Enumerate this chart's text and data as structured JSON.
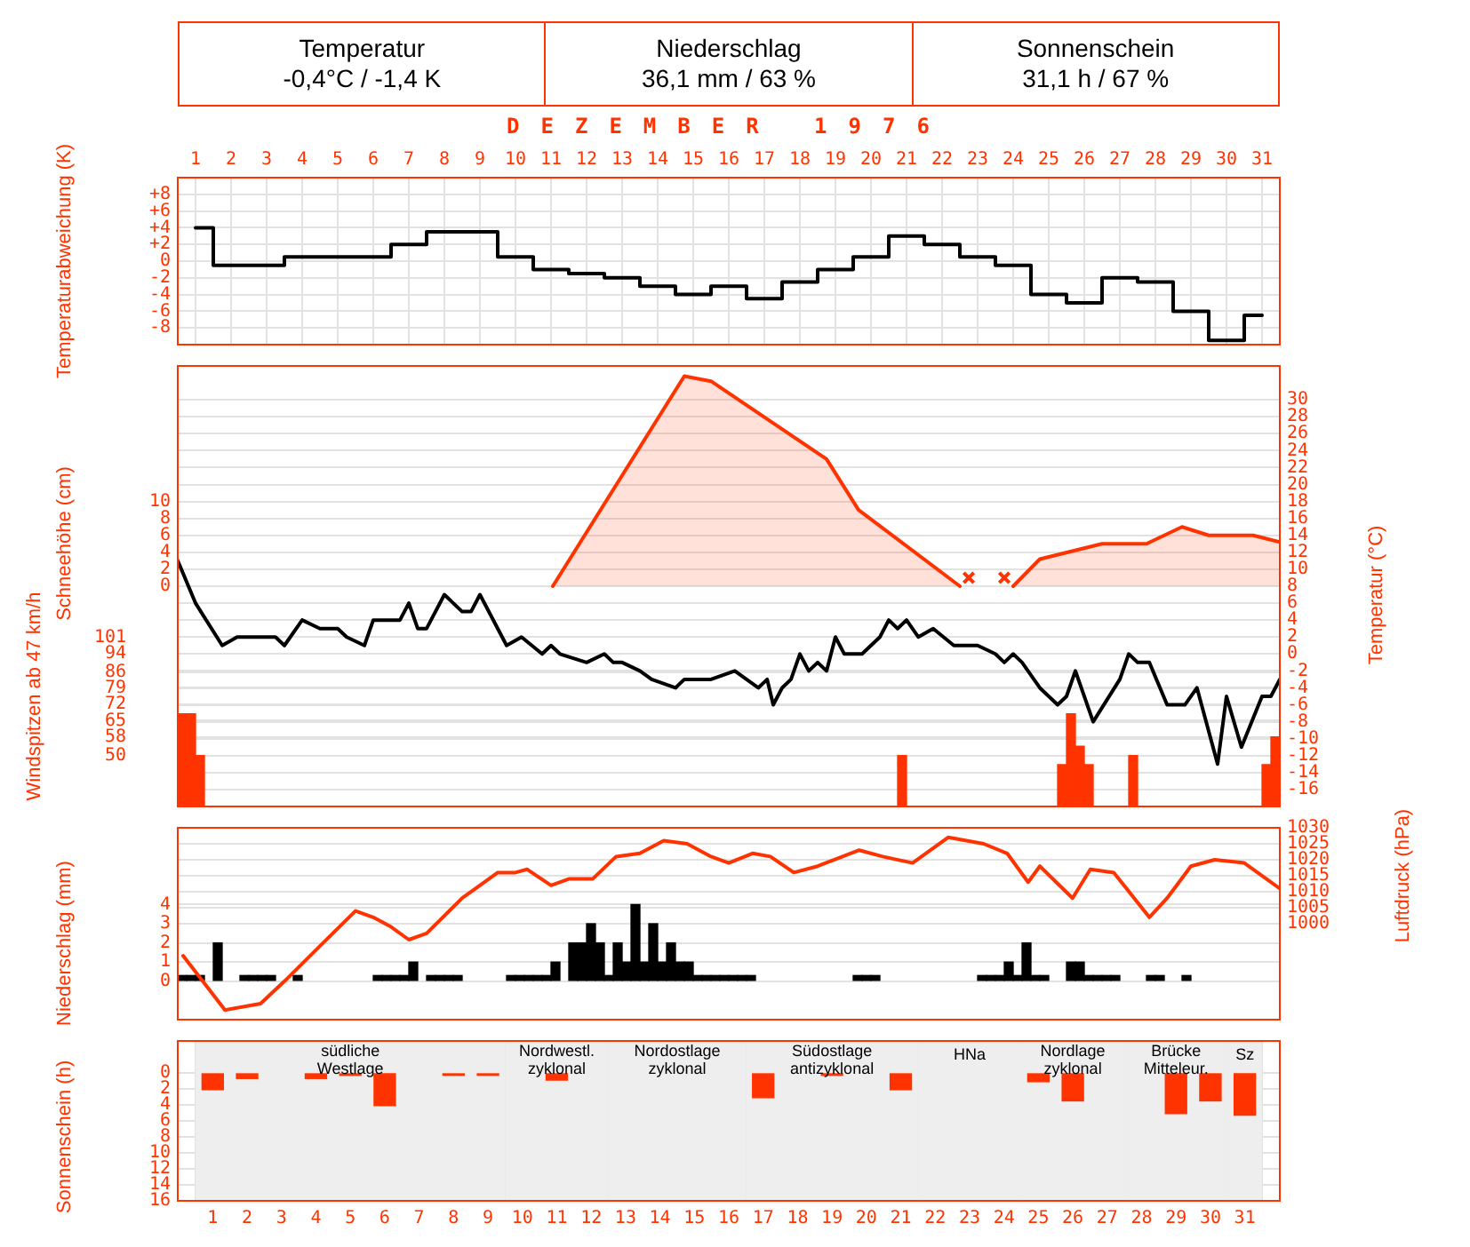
{
  "chart_data": [
    {
      "type": "step",
      "title": "DEZEMBER 1976",
      "annotations": [
        "Temperatur",
        "-0,4°C / -1,4 K",
        "Niederschlag",
        "36,1 mm / 63 %",
        "Sonnenschein",
        "31,1 h / 67 %"
      ],
      "ylabel": "Temperaturabweichung (K)",
      "xlim": [
        0.5,
        31.5
      ],
      "xticks": [
        1,
        2,
        3,
        4,
        5,
        6,
        7,
        8,
        9,
        10,
        11,
        12,
        13,
        14,
        15,
        16,
        17,
        18,
        19,
        20,
        21,
        22,
        23,
        24,
        25,
        26,
        27,
        28,
        29,
        30,
        31
      ],
      "ylim": [
        -10,
        10
      ],
      "yticks": [
        {
          "value": 8,
          "label": "+8"
        },
        {
          "value": 6,
          "label": "+6"
        },
        {
          "value": 4,
          "label": "+4"
        },
        {
          "value": 2,
          "label": "+2"
        },
        0,
        -2,
        -4,
        -6,
        -8
      ],
      "grid": true,
      "legend": false,
      "marker": "none",
      "series": [
        {
          "color": "#000000",
          "x": [
            1,
            2,
            3,
            4,
            5,
            6,
            7,
            8,
            9,
            10,
            11,
            12,
            13,
            14,
            15,
            16,
            17,
            18,
            19,
            20,
            21,
            22,
            23,
            24,
            25,
            26,
            27,
            28,
            29,
            30,
            31
          ],
          "values": [
            4,
            -0.5,
            -0.5,
            0.5,
            0.5,
            0.5,
            2,
            3.5,
            3.5,
            0.5,
            -1,
            -1.5,
            -2,
            -3,
            -4,
            -3,
            -4.5,
            -2.5,
            -1,
            0.5,
            3,
            2,
            0.5,
            -0.5,
            -4,
            -5,
            -2,
            -2.5,
            -6,
            -9.5,
            -6.5
          ]
        }
      ]
    },
    {
      "type": "line",
      "ylabel": "Schneehöhe (cm)",
      "y2label": "Temperatur (°C)",
      "y3label": "Windspitzen ab 47 km/h",
      "xlim": [
        0.5,
        31.5
      ],
      "tick_labels": "y",
      "ylim": [
        -26,
        26
      ],
      "yticks": [
        0,
        2,
        4,
        6,
        8,
        10
      ],
      "y2lim": [
        -18,
        34
      ],
      "y2ticks": [
        30,
        28,
        26,
        24,
        22,
        20,
        18,
        16,
        14,
        12,
        10,
        8,
        6,
        4,
        2,
        0,
        -2,
        -4,
        -6,
        -8,
        -10,
        -12,
        -14,
        -16
      ],
      "y3lim": [
        28,
        218
      ],
      "y3ticks": [
        101,
        94,
        86,
        79,
        72,
        65,
        58,
        50
      ],
      "grid": true,
      "legend": false,
      "marker": "none",
      "series": [
        {
          "type": "area",
          "color": "#ff3300",
          "x": [
            11.05,
            14.75,
            15.5,
            18.75,
            19.65,
            22.5,
            23,
            24,
            24.75,
            26.5,
            27.75,
            28.75,
            29.5,
            30.75,
            31.5
          ],
          "values": [
            0,
            24.8,
            24.2,
            15,
            9,
            0,
            null,
            0,
            3.2,
            5,
            5,
            7,
            6,
            6,
            5.2
          ]
        },
        {
          "type": "scatter",
          "color": "#ff3300",
          "marker": "cross",
          "x": [
            22.75,
            23.75
          ],
          "values": [
            1,
            1
          ]
        },
        {
          "type": "line",
          "axis": "y2",
          "color": "#000000",
          "x": [
            0.5,
            1,
            1.75,
            2.17,
            3.25,
            3.5,
            4,
            4.5,
            5,
            5.25,
            5.75,
            6,
            6.75,
            7,
            7.25,
            7.5,
            8,
            8.5,
            8.75,
            9,
            9.75,
            10.17,
            10.75,
            11,
            11.25,
            12,
            12.5,
            12.75,
            13,
            13.5,
            13.83,
            14.5,
            14.75,
            15.5,
            16.17,
            16.83,
            17.08,
            17.25,
            17.5,
            17.75,
            18,
            18.25,
            18.5,
            18.75,
            19,
            19.25,
            19.75,
            20.25,
            20.5,
            20.75,
            21,
            21.33,
            21.75,
            22.33,
            23,
            23.5,
            23.75,
            24,
            24.25,
            24.75,
            25.25,
            25.5,
            25.75,
            26.25,
            27,
            27.25,
            27.5,
            27.83,
            28.33,
            28.83,
            29.17,
            29.75,
            30,
            30.42,
            31,
            31.25,
            31.5
          ],
          "values": [
            11,
            6,
            1,
            2,
            2,
            1,
            4,
            3,
            3,
            2,
            1,
            4,
            4,
            6,
            3,
            3,
            7,
            5,
            5,
            7,
            1,
            2,
            0,
            1,
            0,
            -1,
            0,
            -1,
            -1,
            -2,
            -3,
            -4,
            -3,
            -3,
            -2,
            -4,
            -3,
            -6,
            -4,
            -3,
            0,
            -2,
            -1,
            -2,
            2,
            0,
            0,
            2,
            4,
            3,
            4,
            2,
            3,
            1,
            1,
            0,
            -1,
            0,
            -1,
            -4,
            -6,
            -5,
            -2,
            -8,
            -3,
            0,
            -1,
            -1,
            -6,
            -6,
            -4,
            -13,
            -5,
            -11,
            -5,
            -5,
            -3
          ]
        },
        {
          "type": "bar",
          "axis": "y3",
          "color": "#ff3300",
          "x": [
            0.625,
            0.875,
            1.125,
            20.875,
            25.375,
            25.625,
            25.875,
            26.125,
            27.375,
            31.125,
            31.375
          ],
          "values": [
            68,
            68,
            50,
            50,
            46,
            68,
            54,
            46,
            50,
            46,
            58
          ]
        }
      ]
    },
    {
      "type": "bar",
      "ylabel": "Niederschlag (mm)",
      "y2label": "Luftdruck (hPa)",
      "xlim": [
        0.5,
        31.5
      ],
      "tick_labels": "y",
      "ylim": [
        -2,
        8
      ],
      "yticks": [
        0,
        1,
        2,
        3,
        4
      ],
      "y2lim": [
        970,
        1030
      ],
      "y2ticks": [
        1030,
        1025,
        1020,
        1015,
        1010,
        1005,
        1000
      ],
      "grid": true,
      "legend": false,
      "marker": "none",
      "series": [
        {
          "type": "bar",
          "color": "#000000",
          "x": [
            0.625,
            0.875,
            1.125,
            1.625,
            2.375,
            2.625,
            2.875,
            3.125,
            3.875,
            6.125,
            6.375,
            6.625,
            6.875,
            7.125,
            7.625,
            7.875,
            8.125,
            8.375,
            9.875,
            10.125,
            10.375,
            10.625,
            10.875,
            11.125,
            11.625,
            11.875,
            12.125,
            12.375,
            12.625,
            12.875,
            13.125,
            13.375,
            13.625,
            13.875,
            14.125,
            14.375,
            14.625,
            14.875,
            15.125,
            15.375,
            15.625,
            15.875,
            16.125,
            16.375,
            16.625,
            19.625,
            19.875,
            20.125,
            23.125,
            23.375,
            23.625,
            23.875,
            24.125,
            24.375,
            24.625,
            24.875,
            25.625,
            25.875,
            26.125,
            26.375,
            26.625,
            26.875,
            27.875,
            28.125,
            28.875
          ],
          "values": [
            0.3,
            0.3,
            0.3,
            2,
            0.3,
            0.3,
            0.3,
            0.3,
            0.3,
            0.3,
            0.3,
            0.3,
            0.3,
            1,
            0.3,
            0.3,
            0.3,
            0.3,
            0.3,
            0.3,
            0.3,
            0.3,
            0.3,
            1,
            2,
            2,
            3,
            2,
            0.3,
            2,
            1,
            4,
            1,
            3,
            1,
            2,
            1,
            1,
            0.3,
            0.3,
            0.3,
            0.3,
            0.3,
            0.3,
            0.3,
            0.3,
            0.3,
            0.3,
            0.3,
            0.3,
            0.3,
            1,
            0.3,
            2,
            0.3,
            0.3,
            1,
            1,
            0.3,
            0.3,
            0.3,
            0.3,
            0.3,
            0.3,
            0.3
          ]
        },
        {
          "type": "line",
          "axis": "y2",
          "color": "#ff3300",
          "x": [
            0.65,
            1.83,
            2.83,
            3.5,
            4.5,
            5.5,
            6,
            6.5,
            7,
            7.5,
            8.5,
            9,
            9.5,
            10,
            10.33,
            11,
            11.5,
            12.17,
            12.83,
            13.5,
            14.17,
            14.83,
            15.5,
            16,
            16.67,
            17.17,
            17.83,
            18.5,
            19.67,
            20.33,
            21.17,
            22.17,
            23.17,
            23.83,
            24.42,
            24.75,
            25.67,
            26.17,
            26.83,
            27.83,
            28.33,
            29,
            29.67,
            30.5,
            31.5
          ],
          "values": [
            990,
            973,
            975,
            982,
            993,
            1004,
            1002,
            999,
            995,
            997,
            1008,
            1012,
            1016,
            1016,
            1017,
            1012,
            1014,
            1014,
            1021,
            1022,
            1026,
            1025,
            1021,
            1019,
            1022,
            1021,
            1016,
            1018,
            1023,
            1021,
            1019,
            1027,
            1025,
            1022,
            1013,
            1018,
            1008,
            1017,
            1016,
            1002,
            1008,
            1018,
            1020,
            1019,
            1011
          ]
        }
      ]
    },
    {
      "type": "bar",
      "ylabel": "Sonnenschein (h)",
      "xlim": [
        0.5,
        31.5
      ],
      "xticks": [
        1,
        2,
        3,
        4,
        5,
        6,
        7,
        8,
        9,
        10,
        11,
        12,
        13,
        14,
        15,
        16,
        17,
        18,
        19,
        20,
        21,
        22,
        23,
        24,
        25,
        26,
        27,
        28,
        29,
        30,
        31
      ],
      "ylim": [
        16,
        -4
      ],
      "yticks": [
        0,
        2,
        4,
        6,
        8,
        10,
        12,
        14,
        16
      ],
      "grid": true,
      "legend": false,
      "marker": "none",
      "bands": [
        {
          "axis": "x",
          "from": 0.5,
          "to": 9.5,
          "label": "südliche Westlage",
          "color": "#eeeeee"
        },
        {
          "axis": "x",
          "from": 9.5,
          "to": 12.5,
          "label": "Nordwestl. zyklonal",
          "color": "#eeeeee"
        },
        {
          "axis": "x",
          "from": 12.5,
          "to": 16.5,
          "label": "Nordostlage zyklonal",
          "color": "#eeeeee"
        },
        {
          "axis": "x",
          "from": 16.5,
          "to": 21.5,
          "label": "Südostlage antizyklonal",
          "color": "#eeeeee"
        },
        {
          "axis": "x",
          "from": 21.5,
          "to": 24.5,
          "label": "HNa",
          "color": "#eeeeee"
        },
        {
          "axis": "x",
          "from": 24.5,
          "to": 27.5,
          "label": "Nordlage zyklonal",
          "color": "#eeeeee"
        },
        {
          "axis": "x",
          "from": 27.5,
          "to": 30.5,
          "label": "Brücke Mitteleur.",
          "color": "#eeeeee"
        },
        {
          "axis": "x",
          "from": 30.5,
          "to": 31.5,
          "label": "Sz",
          "color": "#eeeeee"
        }
      ],
      "series": [
        {
          "color": "#ff3300",
          "x": [
            1,
            2,
            4,
            5,
            6,
            8,
            9,
            11,
            17,
            19,
            21,
            25,
            26,
            29,
            30,
            31
          ],
          "values": [
            2.1,
            0.7,
            0.7,
            0.3,
            4.1,
            0.3,
            0.3,
            0.9,
            3.1,
            0.3,
            2.1,
            1.1,
            3.5,
            5.1,
            3.5,
            5.3
          ]
        }
      ]
    }
  ]
}
